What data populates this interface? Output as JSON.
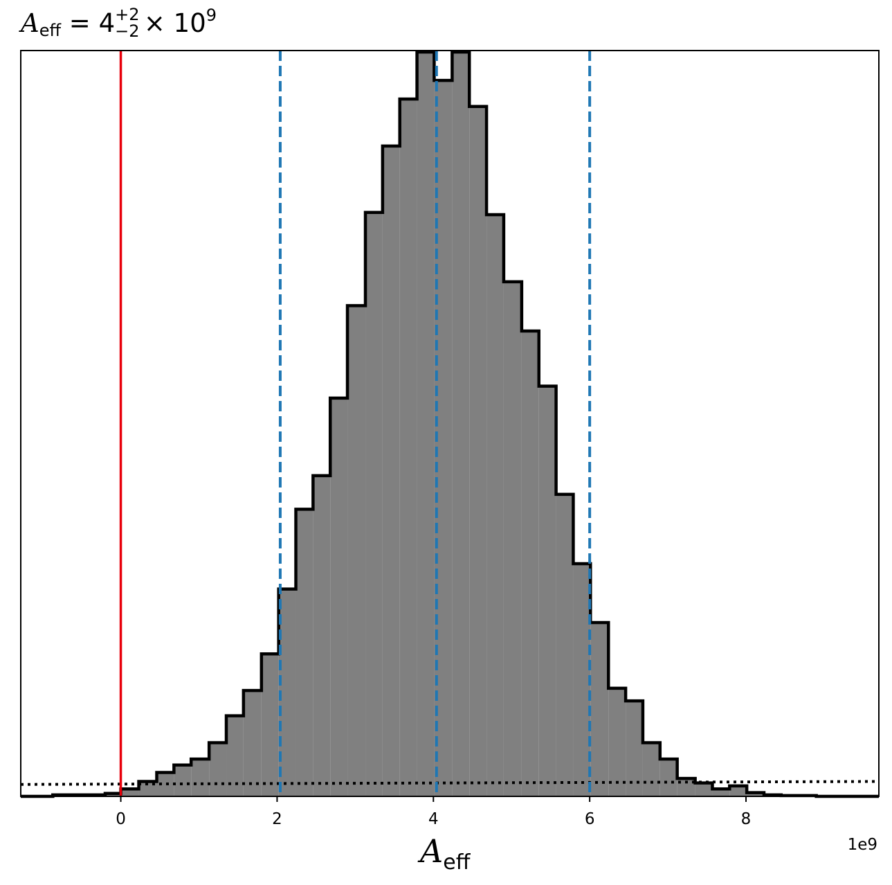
{
  "chart_data": {
    "type": "histogram",
    "title": {
      "symbol": "A",
      "subscript": "eff",
      "equals": " = 4",
      "upper_err": "+2",
      "lower_err": "−2",
      "times": " × 10",
      "exponent": "9"
    },
    "xlabel": {
      "symbol": "A",
      "subscript": "eff"
    },
    "x_offset_label": "1e9",
    "xlim": [
      -1.28,
      9.7
    ],
    "ylim": [
      0,
      1.0
    ],
    "x_ticks": [
      0,
      2,
      4,
      6,
      8
    ],
    "x_tick_labels": [
      "0",
      "2",
      "4",
      "6",
      "8"
    ],
    "bin_edges": [
      -1.28,
      -0.87,
      -0.2,
      0.0,
      0.23,
      0.46,
      0.68,
      0.9,
      1.13,
      1.35,
      1.57,
      1.8,
      2.02,
      2.24,
      2.46,
      2.68,
      2.9,
      3.13,
      3.35,
      3.57,
      3.79,
      4.01,
      4.24,
      4.46,
      4.68,
      4.9,
      5.13,
      5.35,
      5.57,
      5.79,
      6.01,
      6.24,
      6.46,
      6.68,
      6.9,
      7.12,
      7.35,
      7.57,
      7.79,
      8.01,
      8.23,
      8.45,
      8.9,
      9.7
    ],
    "counts": [
      0.0,
      0.002,
      0.004,
      0.01,
      0.02,
      0.032,
      0.042,
      0.05,
      0.072,
      0.108,
      0.142,
      0.191,
      0.278,
      0.385,
      0.43,
      0.534,
      0.658,
      0.783,
      0.872,
      0.935,
      0.998,
      0.96,
      0.998,
      0.925,
      0.78,
      0.69,
      0.624,
      0.55,
      0.405,
      0.312,
      0.233,
      0.145,
      0.128,
      0.072,
      0.05,
      0.024,
      0.018,
      0.01,
      0.014,
      0.005,
      0.002,
      0.001,
      0.0
    ],
    "reference_line": {
      "x": 0,
      "color": "#e8000b"
    },
    "quantile_lines": {
      "x": [
        2.04,
        4.04,
        6.0
      ],
      "color": "#1f77b4",
      "style": "dashed"
    },
    "prior_line": {
      "start": [
        -1.28,
        0.016
      ],
      "end": [
        9.7,
        0.02
      ],
      "color": "#000000",
      "style": "dotted"
    },
    "fill_color": "#808080",
    "edge_color": "#000000"
  }
}
